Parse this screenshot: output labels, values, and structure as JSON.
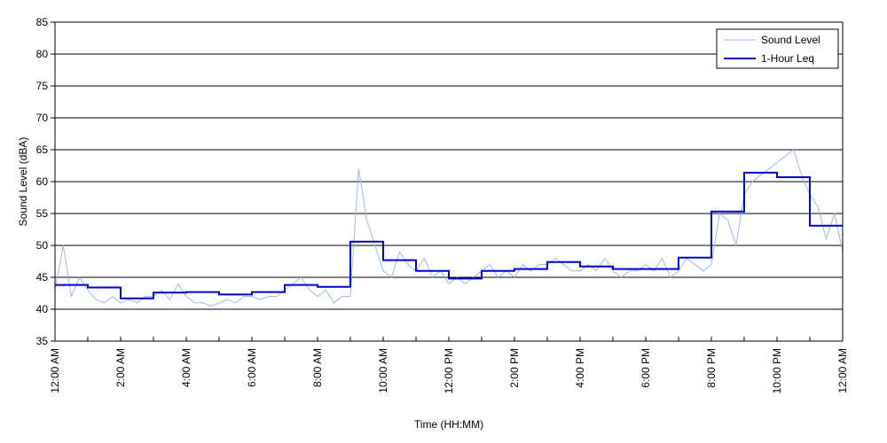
{
  "chart_data": {
    "type": "line",
    "xlabel": "Time (HH:MM)",
    "ylabel": "Sound Level (dBA)",
    "x_range_hours": [
      0,
      24
    ],
    "ylim": [
      35,
      85
    ],
    "y_ticks": [
      35,
      40,
      45,
      50,
      55,
      60,
      65,
      70,
      75,
      80,
      85
    ],
    "x_ticks": [
      {
        "hour": 0,
        "label": "12:00 AM"
      },
      {
        "hour": 1,
        "label": ""
      },
      {
        "hour": 2,
        "label": "2:00 AM"
      },
      {
        "hour": 3,
        "label": ""
      },
      {
        "hour": 4,
        "label": "4:00 AM"
      },
      {
        "hour": 5,
        "label": ""
      },
      {
        "hour": 6,
        "label": "6:00 AM"
      },
      {
        "hour": 7,
        "label": ""
      },
      {
        "hour": 8,
        "label": "8:00 AM"
      },
      {
        "hour": 9,
        "label": ""
      },
      {
        "hour": 10,
        "label": "10:00 AM"
      },
      {
        "hour": 11,
        "label": ""
      },
      {
        "hour": 12,
        "label": "12:00 PM"
      },
      {
        "hour": 13,
        "label": ""
      },
      {
        "hour": 14,
        "label": "2:00 PM"
      },
      {
        "hour": 15,
        "label": ""
      },
      {
        "hour": 16,
        "label": "4:00 PM"
      },
      {
        "hour": 17,
        "label": ""
      },
      {
        "hour": 18,
        "label": "6:00 PM"
      },
      {
        "hour": 19,
        "label": ""
      },
      {
        "hour": 20,
        "label": "8:00 PM"
      },
      {
        "hour": 21,
        "label": ""
      },
      {
        "hour": 22,
        "label": "10:00 PM"
      },
      {
        "hour": 23,
        "label": ""
      },
      {
        "hour": 24,
        "label": "12:00 AM"
      }
    ],
    "grid": {
      "horizontal": true,
      "vertical": false
    },
    "legend_position": "top-right",
    "series": [
      {
        "name": "Sound Level",
        "color": "#9ab8ec",
        "style": "thin-line",
        "x_hours": [
          0.0,
          0.25,
          0.5,
          0.75,
          1.0,
          1.25,
          1.5,
          1.75,
          2.0,
          2.25,
          2.5,
          2.75,
          3.0,
          3.25,
          3.5,
          3.75,
          4.0,
          4.25,
          4.5,
          4.75,
          5.0,
          5.25,
          5.5,
          5.75,
          6.0,
          6.25,
          6.5,
          6.75,
          7.0,
          7.25,
          7.5,
          7.75,
          8.0,
          8.25,
          8.5,
          8.75,
          9.0,
          9.25,
          9.5,
          9.75,
          10.0,
          10.25,
          10.5,
          10.75,
          11.0,
          11.25,
          11.5,
          11.75,
          12.0,
          12.25,
          12.5,
          12.75,
          13.0,
          13.25,
          13.5,
          13.75,
          14.0,
          14.25,
          14.5,
          14.75,
          15.0,
          15.25,
          15.5,
          15.75,
          16.0,
          16.25,
          16.5,
          16.75,
          17.0,
          17.25,
          17.5,
          17.75,
          18.0,
          18.25,
          18.5,
          18.75,
          19.0,
          19.25,
          19.5,
          19.75,
          20.0,
          20.25,
          20.5,
          20.75,
          21.0,
          21.25,
          21.5,
          21.75,
          22.0,
          22.25,
          22.5,
          22.75,
          23.0,
          23.25,
          23.5,
          23.75,
          24.0
        ],
        "values": [
          43,
          50,
          42,
          45,
          43,
          41.5,
          41,
          42,
          41,
          41.5,
          41,
          42,
          42,
          43,
          41.5,
          44,
          42,
          41,
          41,
          40.5,
          41,
          41.5,
          41,
          42,
          42,
          41.5,
          42,
          42,
          43,
          44,
          45,
          43,
          42,
          43,
          41,
          42,
          42,
          62,
          54,
          50,
          46,
          45,
          49,
          47,
          46,
          48,
          45,
          46,
          44,
          45,
          44,
          45,
          46,
          47,
          45,
          46,
          45,
          47,
          46,
          47,
          47,
          48,
          47,
          46,
          46,
          47,
          46,
          48,
          46,
          45,
          46,
          46,
          47,
          46,
          48,
          45,
          46,
          48,
          47,
          46,
          47,
          55,
          54,
          50,
          58,
          60,
          61,
          62,
          63,
          64,
          65,
          61,
          58,
          56,
          51,
          55,
          49
        ]
      },
      {
        "name": "1-Hour Leq",
        "color": "#0000cc",
        "style": "step",
        "values": [
          43.8,
          43.4,
          41.7,
          42.6,
          42.7,
          42.3,
          42.7,
          43.8,
          43.5,
          50.6,
          47.7,
          46.0,
          44.8,
          46.0,
          46.3,
          47.4,
          46.7,
          46.3,
          46.3,
          48.1,
          55.3,
          61.4,
          60.7,
          53.1
        ]
      }
    ]
  }
}
